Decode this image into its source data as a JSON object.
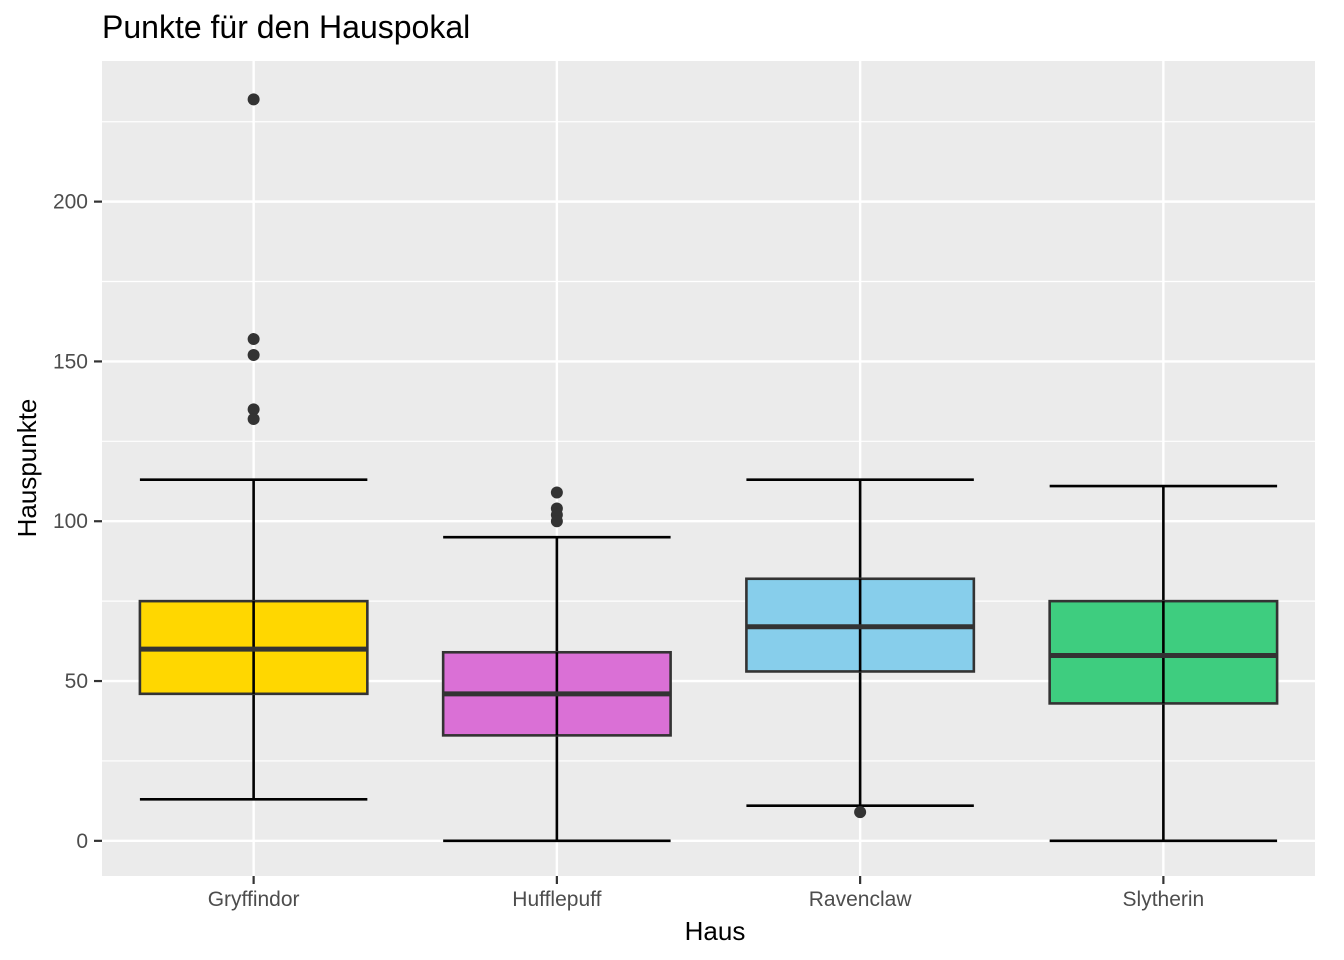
{
  "chart_data": {
    "type": "boxplot",
    "title": "Punkte für den Hauspokal",
    "xlabel": "Haus",
    "ylabel": "Hauspunkte",
    "ylim": [
      -11,
      244
    ],
    "y_ticks": [
      0,
      50,
      100,
      150,
      200
    ],
    "y_tick_labels": [
      "0",
      "50",
      "100",
      "150",
      "200"
    ],
    "y_minor_ticks": [
      25,
      75,
      125,
      175,
      225
    ],
    "grid": true,
    "legend": "none",
    "panel_color": "#ebebeb",
    "categories": [
      "Gryffindor",
      "Hufflepuff",
      "Ravenclaw",
      "Slytherin"
    ],
    "series": [
      {
        "category": "Gryffindor",
        "color": "#ffd700",
        "whisker_low": 13,
        "q1": 46,
        "median": 60,
        "q3": 75,
        "whisker_high": 113,
        "outliers": [
          232,
          157,
          152,
          135,
          132
        ]
      },
      {
        "category": "Hufflepuff",
        "color": "#da70d6",
        "whisker_low": 0,
        "q1": 33,
        "median": 46,
        "q3": 59,
        "whisker_high": 95,
        "outliers": [
          109,
          104,
          102,
          100
        ]
      },
      {
        "category": "Ravenclaw",
        "color": "#87ceeb",
        "whisker_low": 11,
        "q1": 53,
        "median": 67,
        "q3": 82,
        "whisker_high": 113,
        "outliers": [
          9
        ]
      },
      {
        "category": "Slytherin",
        "color": "#3ecd7f",
        "whisker_low": 0,
        "q1": 43,
        "median": 58,
        "q3": 75,
        "whisker_high": 111,
        "outliers": []
      }
    ]
  }
}
